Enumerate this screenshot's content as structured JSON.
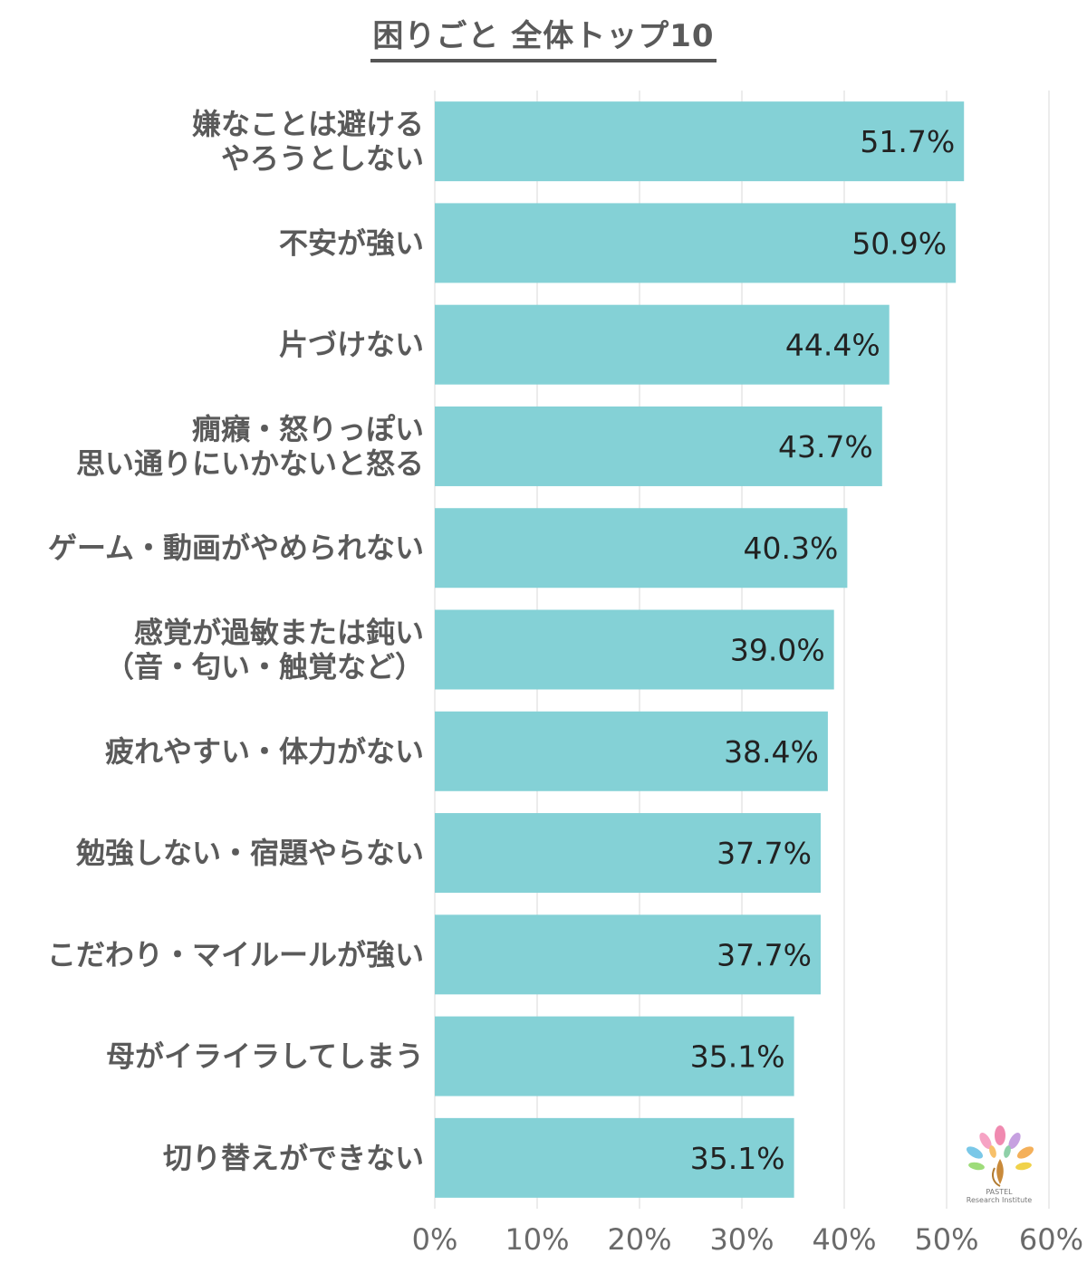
{
  "title": "困りごと 全体トップ10",
  "logo": {
    "icon": "tree-icon",
    "line1": "PASTEL",
    "line2": "Research Institute"
  },
  "colors": {
    "bar": "#84d1d6",
    "text": "#5a5a5a",
    "grid": "#e6e6e6"
  },
  "chart_data": {
    "type": "bar",
    "orientation": "horizontal",
    "title": "困りごと 全体トップ10",
    "categories": [
      [
        "嫌なことは避ける",
        "やろうとしない"
      ],
      [
        "不安が強い"
      ],
      [
        "片づけない"
      ],
      [
        "癇癪・怒りっぽい",
        "思い通りにいかないと怒る"
      ],
      [
        "ゲーム・動画がやめられない"
      ],
      [
        "感覚が過敏または鈍い",
        "（音・匂い・触覚など）"
      ],
      [
        "疲れやすい・体力がない"
      ],
      [
        "勉強しない・宿題やらない"
      ],
      [
        "こだわり・マイルールが強い"
      ],
      [
        "母がイライラしてしまう"
      ],
      [
        "切り替えができない"
      ]
    ],
    "values": [
      51.7,
      50.9,
      44.4,
      43.7,
      40.3,
      39.0,
      38.4,
      37.7,
      37.7,
      35.1,
      35.1
    ],
    "value_labels": [
      "51.7%",
      "50.9%",
      "44.4%",
      "43.7%",
      "40.3%",
      "39.0%",
      "38.4%",
      "37.7%",
      "37.7%",
      "35.1%",
      "35.1%"
    ],
    "xlim": [
      0,
      60
    ],
    "xticks": [
      "0%",
      "10%",
      "20%",
      "30%",
      "40%",
      "50%",
      "60%"
    ],
    "grid": true
  }
}
